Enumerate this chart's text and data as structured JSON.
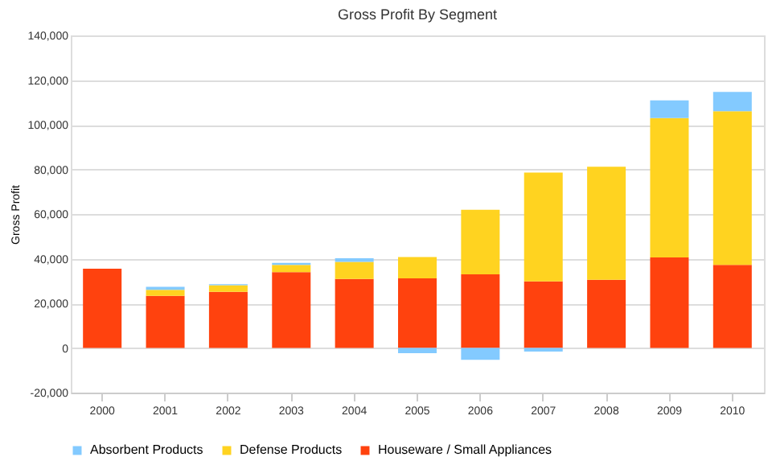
{
  "chart_data": {
    "type": "bar",
    "title": "Gross Profit By Segment",
    "ylabel": "Gross Profit",
    "categories": [
      "2000",
      "2001",
      "2002",
      "2003",
      "2004",
      "2005",
      "2006",
      "2007",
      "2008",
      "2009",
      "2010"
    ],
    "stacked": true,
    "series": [
      {
        "name": "Houseware / Small Appliances",
        "color": "#ff420e",
        "values": [
          35500,
          23300,
          25100,
          34000,
          30900,
          31200,
          33000,
          29800,
          30500,
          40500,
          37200
        ]
      },
      {
        "name": "Defense Products",
        "color": "#ffd320",
        "values": [
          0,
          2700,
          3000,
          3200,
          7700,
          9500,
          28900,
          48800,
          50700,
          62500,
          68800
        ]
      },
      {
        "name": "Absorbent Products",
        "color": "#83caff",
        "values": [
          0,
          1400,
          500,
          900,
          1600,
          -2300,
          -5300,
          -1600,
          0,
          7900,
          8700
        ]
      }
    ],
    "ylim": [
      -20000,
      140000
    ],
    "yticks": [
      {
        "value": -20000,
        "label": "-20,000"
      },
      0,
      {
        "value": 20000,
        "label": "20,000"
      },
      {
        "value": 40000,
        "label": "40,000"
      },
      {
        "value": 60000,
        "label": "60,000"
      },
      {
        "value": 80000,
        "label": "80,000"
      },
      {
        "value": 100000,
        "label": "100,000"
      },
      {
        "value": 120000,
        "label": "120,000"
      },
      {
        "value": 140000,
        "label": "140,000"
      }
    ],
    "grid": "y",
    "legend": "bottom"
  }
}
